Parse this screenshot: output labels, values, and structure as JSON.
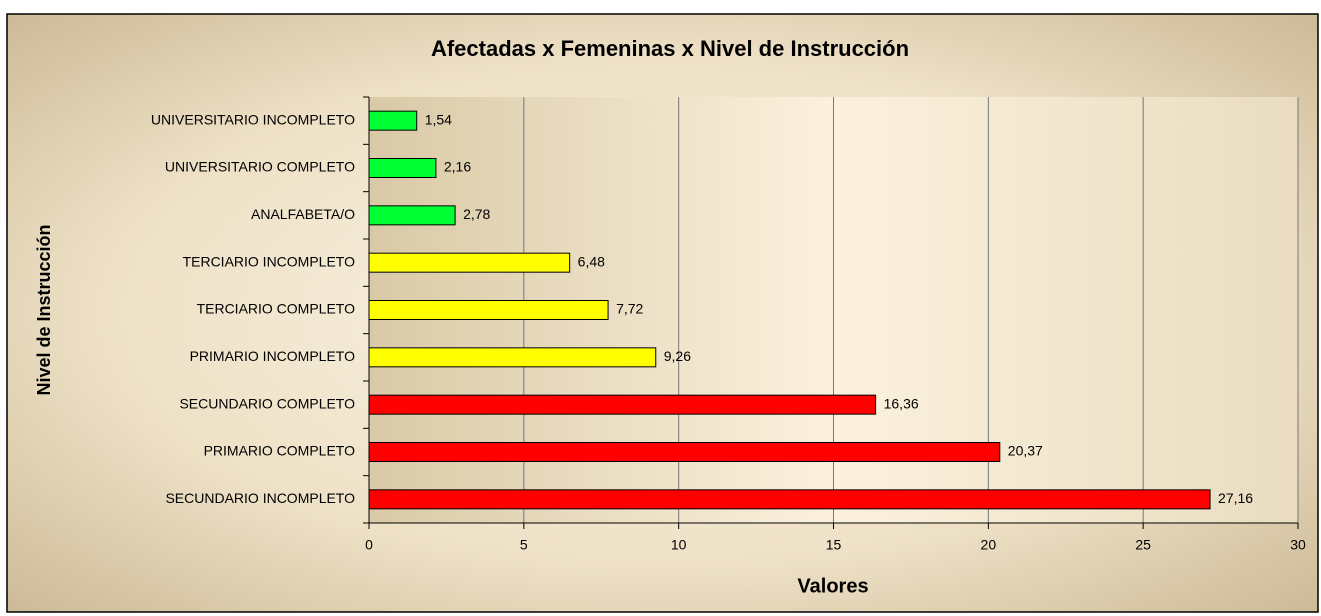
{
  "chart_data": {
    "type": "barh",
    "title": "Afectadas x Femeninas x Nivel de Instrucción",
    "xlabel": "Valores",
    "ylabel": "Nivel de Instrucción",
    "categories": [
      "UNIVERSITARIO INCOMPLETO",
      "UNIVERSITARIO COMPLETO",
      "ANALFABETA/O",
      "TERCIARIO INCOMPLETO",
      "TERCIARIO COMPLETO",
      "PRIMARIO INCOMPLETO",
      "SECUNDARIO COMPLETO",
      "PRIMARIO COMPLETO",
      "SECUNDARIO INCOMPLETO"
    ],
    "values": [
      1.54,
      2.16,
      2.78,
      6.48,
      7.72,
      9.26,
      16.36,
      20.37,
      27.16
    ],
    "value_labels": [
      "1,54",
      "2,16",
      "2,78",
      "6,48",
      "7,72",
      "9,26",
      "16,36",
      "20,37",
      "27,16"
    ],
    "colors": [
      "#00ff33",
      "#00ff33",
      "#00ff33",
      "#ffff00",
      "#ffff00",
      "#ffff00",
      "#ff0000",
      "#ff0000",
      "#ff0000"
    ],
    "xlim": [
      0,
      30
    ],
    "xticks": [
      0,
      5,
      10,
      15,
      20,
      25,
      30
    ],
    "grid": true
  }
}
